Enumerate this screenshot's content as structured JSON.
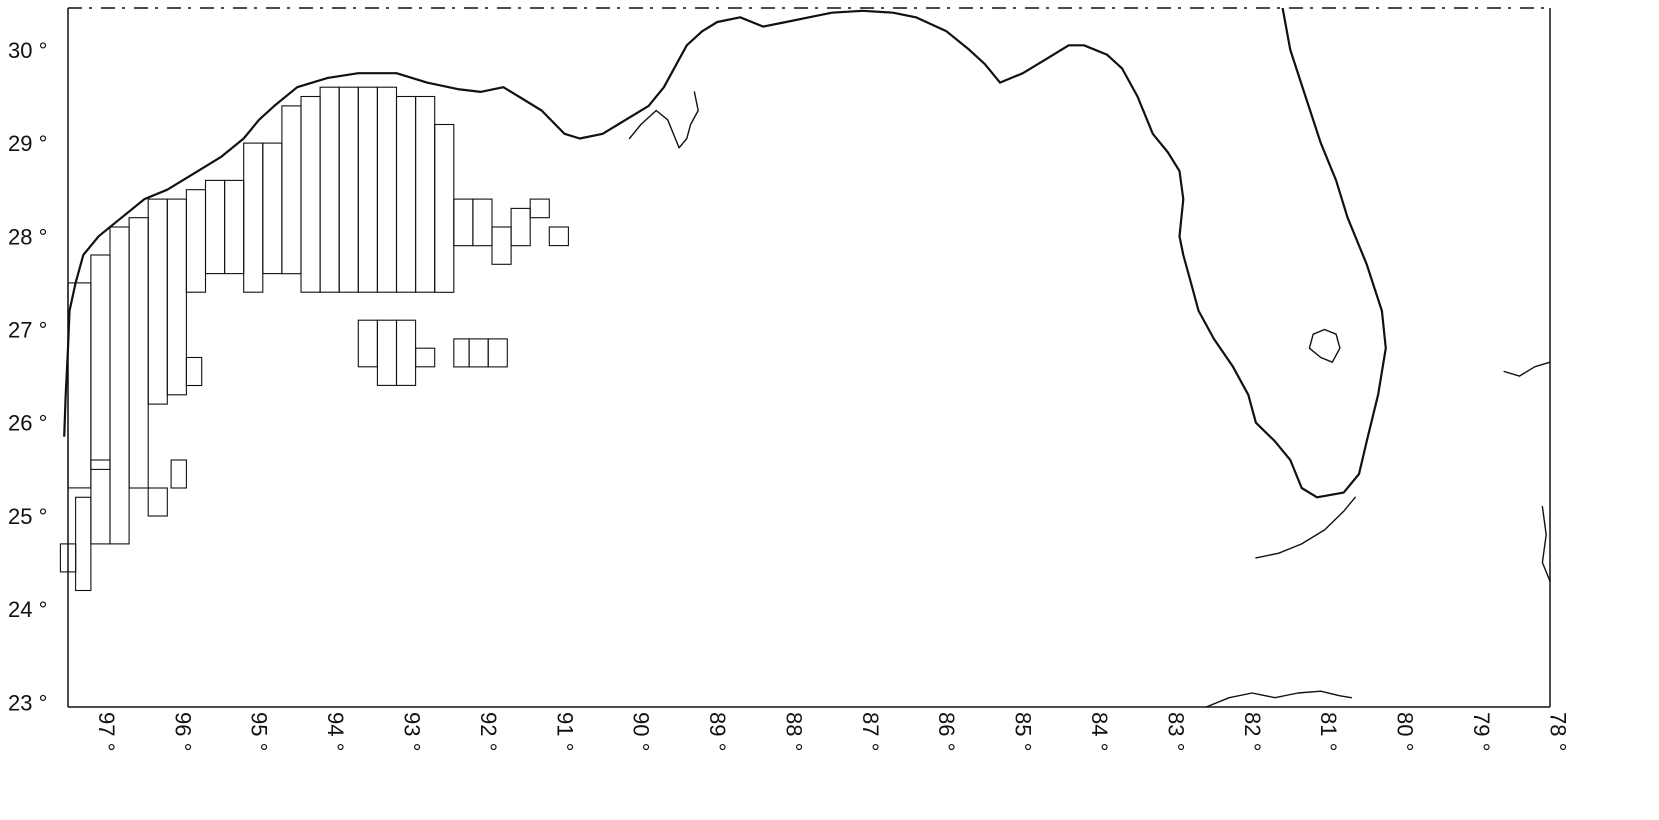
{
  "map": {
    "lon_range": [
      97.3,
      77.9
    ],
    "lat_range": [
      22.95,
      30.45
    ],
    "lat_labels": [
      {
        "value": 30,
        "text": "30 °"
      },
      {
        "value": 29,
        "text": "29 °"
      },
      {
        "value": 28,
        "text": "28 °"
      },
      {
        "value": 27,
        "text": "27 °"
      },
      {
        "value": 26,
        "text": "26 °"
      },
      {
        "value": 25,
        "text": "25 °"
      },
      {
        "value": 24,
        "text": "24 °"
      },
      {
        "value": 23,
        "text": "23 °"
      }
    ],
    "lon_labels": [
      {
        "value": 97,
        "text": "97 °"
      },
      {
        "value": 96,
        "text": "96 °"
      },
      {
        "value": 95,
        "text": "95 °"
      },
      {
        "value": 94,
        "text": "94 °"
      },
      {
        "value": 93,
        "text": "93 °"
      },
      {
        "value": 92,
        "text": "92 °"
      },
      {
        "value": 91,
        "text": "91 °"
      },
      {
        "value": 90,
        "text": "90 °"
      },
      {
        "value": 89,
        "text": "89 °"
      },
      {
        "value": 88,
        "text": "88 °"
      },
      {
        "value": 87,
        "text": "87 °"
      },
      {
        "value": 86,
        "text": "86 °"
      },
      {
        "value": 85,
        "text": "85 °"
      },
      {
        "value": 84,
        "text": "84 °"
      },
      {
        "value": 83,
        "text": "83 °"
      },
      {
        "value": 82,
        "text": "82 °"
      },
      {
        "value": 81,
        "text": "81 °"
      },
      {
        "value": 80,
        "text": "80 °"
      },
      {
        "value": 79,
        "text": "79 °"
      },
      {
        "value": 78,
        "text": "78 °"
      }
    ],
    "coastlines": {
      "texas_louisiana": [
        [
          97.35,
          25.85
        ],
        [
          97.33,
          26.3
        ],
        [
          97.3,
          26.8
        ],
        [
          97.28,
          27.2
        ],
        [
          97.2,
          27.5
        ],
        [
          97.1,
          27.8
        ],
        [
          96.9,
          28.0
        ],
        [
          96.6,
          28.2
        ],
        [
          96.3,
          28.4
        ],
        [
          96.0,
          28.5
        ],
        [
          95.6,
          28.7
        ],
        [
          95.3,
          28.85
        ],
        [
          95.0,
          29.05
        ],
        [
          94.8,
          29.25
        ],
        [
          94.6,
          29.4
        ],
        [
          94.3,
          29.6
        ],
        [
          93.9,
          29.7
        ],
        [
          93.5,
          29.75
        ],
        [
          93.0,
          29.75
        ],
        [
          92.6,
          29.65
        ],
        [
          92.2,
          29.58
        ],
        [
          91.9,
          29.55
        ],
        [
          91.6,
          29.6
        ],
        [
          91.4,
          29.5
        ],
        [
          91.1,
          29.35
        ],
        [
          90.8,
          29.1
        ],
        [
          90.6,
          29.05
        ],
        [
          90.3,
          29.1
        ],
        [
          90.1,
          29.2
        ],
        [
          89.9,
          29.3
        ],
        [
          89.7,
          29.4
        ],
        [
          89.5,
          29.6
        ],
        [
          89.3,
          29.9
        ],
        [
          89.2,
          30.05
        ],
        [
          89.0,
          30.2
        ],
        [
          88.8,
          30.3
        ],
        [
          88.5,
          30.35
        ],
        [
          88.2,
          30.25
        ],
        [
          87.9,
          30.3
        ],
        [
          87.6,
          30.35
        ],
        [
          87.3,
          30.4
        ],
        [
          86.9,
          30.42
        ],
        [
          86.5,
          30.4
        ],
        [
          86.2,
          30.35
        ],
        [
          85.8,
          30.2
        ],
        [
          85.5,
          30.0
        ],
        [
          85.3,
          29.85
        ],
        [
          85.1,
          29.65
        ],
        [
          84.8,
          29.75
        ],
        [
          84.5,
          29.9
        ],
        [
          84.2,
          30.05
        ],
        [
          84.0,
          30.05
        ],
        [
          83.7,
          29.95
        ],
        [
          83.5,
          29.8
        ],
        [
          83.3,
          29.5
        ],
        [
          83.1,
          29.1
        ],
        [
          82.9,
          28.9
        ],
        [
          82.75,
          28.7
        ],
        [
          82.7,
          28.4
        ],
        [
          82.75,
          28.0
        ],
        [
          82.7,
          27.8
        ],
        [
          82.6,
          27.5
        ],
        [
          82.5,
          27.2
        ],
        [
          82.3,
          26.9
        ],
        [
          82.05,
          26.6
        ],
        [
          81.85,
          26.3
        ],
        [
          81.75,
          26.0
        ],
        [
          81.5,
          25.8
        ],
        [
          81.3,
          25.6
        ],
        [
          81.15,
          25.3
        ],
        [
          80.95,
          25.2
        ],
        [
          80.6,
          25.25
        ],
        [
          80.4,
          25.45
        ],
        [
          80.3,
          25.8
        ],
        [
          80.15,
          26.3
        ],
        [
          80.05,
          26.8
        ],
        [
          80.1,
          27.2
        ],
        [
          80.3,
          27.7
        ],
        [
          80.55,
          28.2
        ],
        [
          80.7,
          28.6
        ],
        [
          80.9,
          29.0
        ],
        [
          81.1,
          29.5
        ],
        [
          81.3,
          30.0
        ],
        [
          81.4,
          30.45
        ]
      ],
      "okeechobee": [
        [
          80.85,
          27.0
        ],
        [
          80.7,
          26.95
        ],
        [
          80.65,
          26.8
        ],
        [
          80.75,
          26.65
        ],
        [
          80.9,
          26.7
        ],
        [
          81.05,
          26.8
        ],
        [
          81.0,
          26.95
        ],
        [
          80.85,
          27.0
        ]
      ],
      "mississippi_delta": [
        [
          89.95,
          29.05
        ],
        [
          89.8,
          29.2
        ],
        [
          89.6,
          29.35
        ],
        [
          89.45,
          29.25
        ],
        [
          89.35,
          29.05
        ],
        [
          89.3,
          28.95
        ],
        [
          89.2,
          29.05
        ],
        [
          89.15,
          29.2
        ],
        [
          89.05,
          29.35
        ],
        [
          89.1,
          29.55
        ]
      ],
      "keys": [
        [
          81.75,
          24.55
        ],
        [
          81.45,
          24.6
        ],
        [
          81.15,
          24.7
        ],
        [
          80.85,
          24.85
        ],
        [
          80.6,
          25.05
        ],
        [
          80.45,
          25.2
        ]
      ],
      "cuba": [
        [
          82.4,
          22.95
        ],
        [
          82.1,
          23.05
        ],
        [
          81.8,
          23.1
        ],
        [
          81.5,
          23.05
        ],
        [
          81.2,
          23.1
        ],
        [
          80.9,
          23.12
        ],
        [
          80.65,
          23.07
        ],
        [
          80.5,
          23.05
        ]
      ],
      "bahamas_andros": [
        [
          78.5,
          26.55
        ],
        [
          78.3,
          26.5
        ],
        [
          78.1,
          26.6
        ],
        [
          77.9,
          26.65
        ]
      ],
      "bahamas_south": [
        [
          78.0,
          25.1
        ],
        [
          77.95,
          24.8
        ],
        [
          78.0,
          24.5
        ],
        [
          77.9,
          24.3
        ]
      ]
    },
    "survey_cells": [
      [
        97.0,
        24.2,
        97.2,
        25.2
      ],
      [
        97.2,
        24.4,
        97.4,
        24.7
      ],
      [
        96.75,
        24.7,
        97.0,
        25.6
      ],
      [
        96.5,
        24.7,
        96.75,
        28.1
      ],
      [
        96.25,
        25.3,
        96.5,
        28.2
      ],
      [
        96.0,
        25.0,
        96.25,
        25.3
      ],
      [
        96.0,
        26.2,
        96.25,
        28.4
      ],
      [
        95.75,
        26.3,
        96.0,
        28.4
      ],
      [
        95.55,
        26.4,
        95.75,
        26.7
      ],
      [
        95.75,
        25.3,
        95.95,
        25.6
      ],
      [
        95.5,
        27.4,
        95.75,
        28.5
      ],
      [
        95.25,
        27.6,
        95.5,
        28.6
      ],
      [
        95.0,
        27.6,
        95.25,
        28.6
      ],
      [
        94.75,
        27.4,
        95.0,
        29.0
      ],
      [
        94.5,
        27.6,
        94.75,
        29.0
      ],
      [
        94.25,
        27.6,
        94.5,
        29.4
      ],
      [
        94.0,
        27.4,
        94.25,
        29.5
      ],
      [
        93.75,
        27.4,
        94.0,
        29.6
      ],
      [
        93.5,
        27.4,
        93.75,
        29.6
      ],
      [
        93.25,
        27.4,
        93.5,
        29.6
      ],
      [
        93.0,
        27.4,
        93.25,
        29.6
      ],
      [
        92.75,
        27.4,
        93.0,
        29.5
      ],
      [
        92.5,
        27.4,
        92.75,
        29.5
      ],
      [
        92.25,
        27.4,
        92.5,
        29.2
      ],
      [
        92.0,
        27.9,
        92.25,
        28.4
      ],
      [
        91.75,
        27.9,
        92.0,
        28.4
      ],
      [
        91.5,
        27.7,
        91.75,
        28.1
      ],
      [
        91.25,
        27.9,
        91.5,
        28.3
      ],
      [
        91.0,
        28.2,
        91.25,
        28.4
      ],
      [
        90.75,
        27.9,
        91.0,
        28.1
      ],
      [
        93.25,
        26.6,
        93.5,
        27.1
      ],
      [
        93.0,
        26.4,
        93.25,
        27.1
      ],
      [
        92.75,
        26.4,
        93.0,
        27.1
      ],
      [
        92.5,
        26.6,
        92.75,
        26.8
      ],
      [
        92.05,
        26.6,
        92.25,
        26.9
      ],
      [
        91.8,
        26.6,
        92.05,
        26.9
      ],
      [
        91.55,
        26.6,
        91.8,
        26.9
      ],
      [
        97.0,
        25.3,
        97.3,
        27.5
      ],
      [
        96.75,
        25.5,
        97.0,
        27.8
      ]
    ]
  }
}
